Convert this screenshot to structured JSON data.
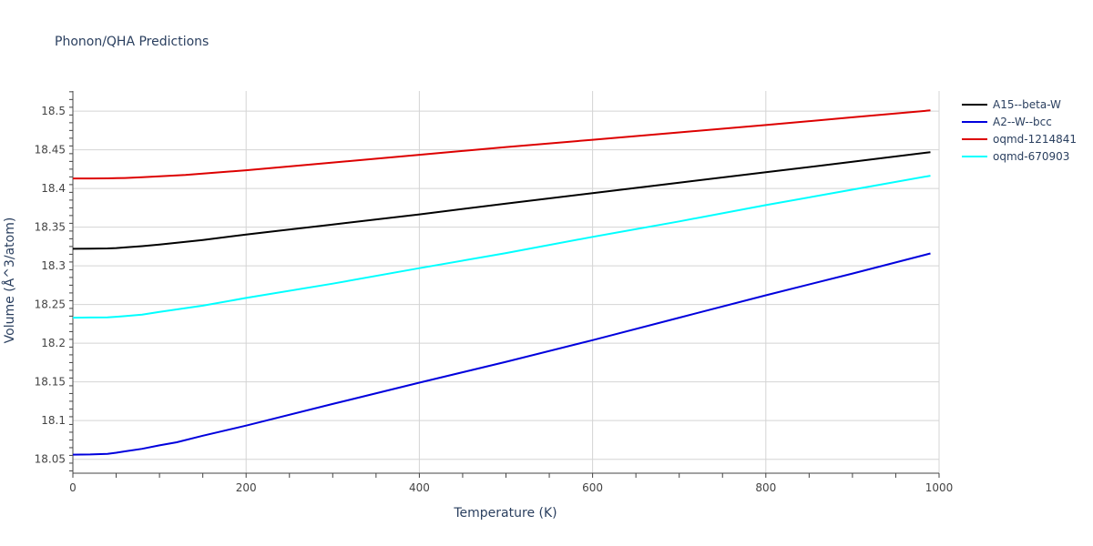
{
  "chart_data": {
    "type": "line",
    "title": "Phonon/QHA Predictions",
    "xlabel": "Temperature (K)",
    "ylabel": "Volume (Å^3/atom)",
    "xlim": [
      0,
      1000
    ],
    "ylim": [
      18.032,
      18.526
    ],
    "x_ticks": [
      0,
      200,
      400,
      600,
      800,
      1000
    ],
    "x_tick_labels": [
      "0",
      "200",
      "400",
      "600",
      "800",
      "1000"
    ],
    "y_ticks": [
      18.05,
      18.1,
      18.15,
      18.2,
      18.25,
      18.3,
      18.35,
      18.4,
      18.45,
      18.5
    ],
    "y_tick_labels": [
      "18.05",
      "18.1",
      "18.15",
      "18.2",
      "18.25",
      "18.3",
      "18.35",
      "18.4",
      "18.45",
      "18.5"
    ],
    "grid": true,
    "legend_position": "top-right",
    "series": [
      {
        "name": "A15--beta-W",
        "color": "#000000",
        "x": [
          0,
          20,
          40,
          50,
          60,
          80,
          100,
          150,
          200,
          300,
          400,
          500,
          600,
          700,
          800,
          900,
          990
        ],
        "y": [
          18.322,
          18.3222,
          18.3225,
          18.323,
          18.3238,
          18.3255,
          18.3275,
          18.3335,
          18.3405,
          18.3535,
          18.3665,
          18.3805,
          18.394,
          18.4075,
          18.421,
          18.4345,
          18.447
        ]
      },
      {
        "name": "A2--W--bcc",
        "color": "#0000dd",
        "x": [
          0,
          20,
          40,
          50,
          60,
          80,
          100,
          120,
          150,
          200,
          300,
          400,
          500,
          600,
          700,
          800,
          900,
          990
        ],
        "y": [
          18.056,
          18.0562,
          18.057,
          18.0585,
          18.0602,
          18.0635,
          18.068,
          18.072,
          18.0805,
          18.0935,
          18.1215,
          18.149,
          18.176,
          18.204,
          18.233,
          18.262,
          18.29,
          18.316
        ]
      },
      {
        "name": "oqmd-1214841",
        "color": "#dd0000",
        "x": [
          0,
          20,
          40,
          60,
          80,
          100,
          130,
          200,
          300,
          400,
          500,
          600,
          700,
          800,
          900,
          990
        ],
        "y": [
          18.413,
          18.413,
          18.4131,
          18.4135,
          18.4145,
          18.4158,
          18.4175,
          18.4235,
          18.4335,
          18.4435,
          18.4535,
          18.463,
          18.4725,
          18.482,
          18.492,
          18.501
        ]
      },
      {
        "name": "oqmd-670903",
        "color": "#00ffff",
        "x": [
          0,
          20,
          40,
          50,
          60,
          80,
          100,
          150,
          200,
          300,
          400,
          500,
          600,
          700,
          800,
          900,
          990
        ],
        "y": [
          18.233,
          18.2332,
          18.2335,
          18.2342,
          18.235,
          18.237,
          18.2405,
          18.2485,
          18.2585,
          18.277,
          18.297,
          18.3165,
          18.3375,
          18.3575,
          18.3785,
          18.3985,
          18.4165
        ]
      }
    ]
  }
}
